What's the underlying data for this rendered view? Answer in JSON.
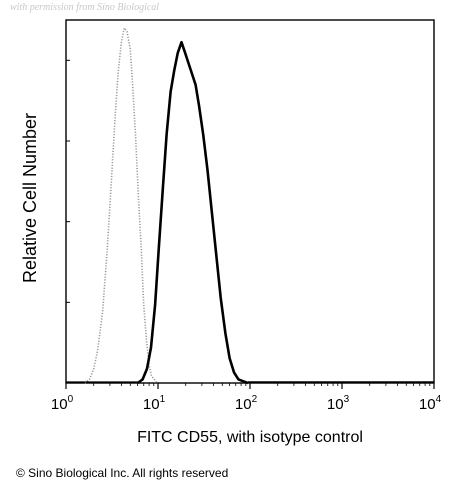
{
  "watermark": "with permission from Sino Biological",
  "copyright": "© Sino Biological Inc. All rights reserved",
  "chart_data": {
    "type": "line",
    "title": "",
    "xlabel": "FITC CD55, with isotype control",
    "ylabel": "Relative Cell Number",
    "x_scale": "log",
    "xlim": [
      1,
      10000
    ],
    "x_ticks": [
      {
        "value": 1,
        "base": "10",
        "exp": "0"
      },
      {
        "value": 10,
        "base": "10",
        "exp": "1"
      },
      {
        "value": 100,
        "base": "10",
        "exp": "2"
      },
      {
        "value": 1000,
        "base": "10",
        "exp": "3"
      },
      {
        "value": 10000,
        "base": "10",
        "exp": "4"
      }
    ],
    "ylim": [
      0,
      1
    ],
    "grid": false,
    "series": [
      {
        "role": "isotype control",
        "style": "dotted",
        "color": "#9a9a9a",
        "x": [
          1.6,
          1.8,
          2.0,
          2.2,
          2.5,
          2.8,
          3.1,
          3.4,
          3.7,
          4.0,
          4.3,
          4.6,
          5.0,
          5.3,
          5.7,
          6.1,
          6.6,
          7.0,
          7.5,
          8.0,
          8.5,
          9.1,
          9.8
        ],
        "y": [
          0.0,
          0.01,
          0.04,
          0.09,
          0.2,
          0.37,
          0.56,
          0.74,
          0.88,
          0.96,
          1.0,
          0.99,
          0.94,
          0.84,
          0.7,
          0.53,
          0.37,
          0.22,
          0.12,
          0.05,
          0.02,
          0.01,
          0.0
        ]
      },
      {
        "role": "FITC CD55",
        "style": "solid",
        "color": "#000000",
        "x": [
          6.0,
          6.8,
          7.6,
          8.4,
          9.3,
          10.2,
          11.3,
          12.4,
          13.7,
          15.0,
          16.4,
          18.0,
          19.7,
          21.5,
          23.5,
          25.6,
          28.0,
          31.0,
          34.5,
          38.5,
          43.0,
          48.0,
          54.0,
          60.0,
          67.0,
          75.0,
          84.0,
          95.0
        ],
        "y": [
          0.0,
          0.01,
          0.04,
          0.1,
          0.22,
          0.38,
          0.55,
          0.7,
          0.82,
          0.88,
          0.93,
          0.96,
          0.93,
          0.9,
          0.87,
          0.84,
          0.78,
          0.7,
          0.6,
          0.48,
          0.36,
          0.24,
          0.14,
          0.07,
          0.03,
          0.01,
          0.005,
          0.0
        ]
      }
    ]
  }
}
